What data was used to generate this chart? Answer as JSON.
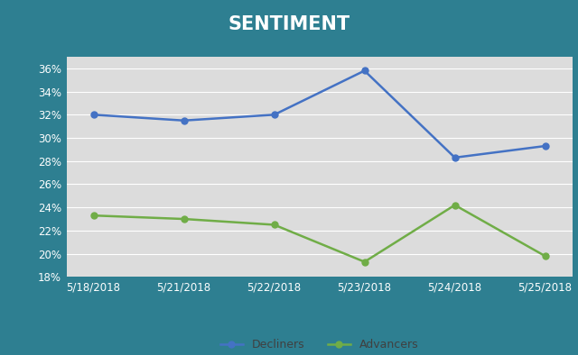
{
  "title": "SENTIMENT",
  "title_color": "#ffffff",
  "title_bg_color": "#2e7f91",
  "plot_bg_color": "#dcdcdc",
  "outer_bg_color": "#2e7f91",
  "x_labels": [
    "5/18/2018",
    "5/21/2018",
    "5/22/2018",
    "5/23/2018",
    "5/24/2018",
    "5/25/2018"
  ],
  "x_positions": [
    0,
    1,
    2,
    3,
    4,
    5
  ],
  "decliners": [
    32.0,
    31.5,
    32.0,
    35.8,
    28.3,
    29.3
  ],
  "advancers": [
    23.3,
    23.0,
    22.5,
    19.3,
    24.2,
    19.8
  ],
  "decliners_color": "#4472c4",
  "advancers_color": "#70ad47",
  "ylim": [
    18,
    37
  ],
  "yticks": [
    18,
    20,
    22,
    24,
    26,
    28,
    30,
    32,
    34,
    36
  ],
  "grid_color": "#ffffff",
  "tick_label_color": "#ffffff",
  "legend_label_color": "#404040",
  "legend_label_decliners": "Decliners",
  "legend_label_advancers": "Advancers",
  "line_width": 1.8,
  "marker": "o",
  "marker_size": 5
}
